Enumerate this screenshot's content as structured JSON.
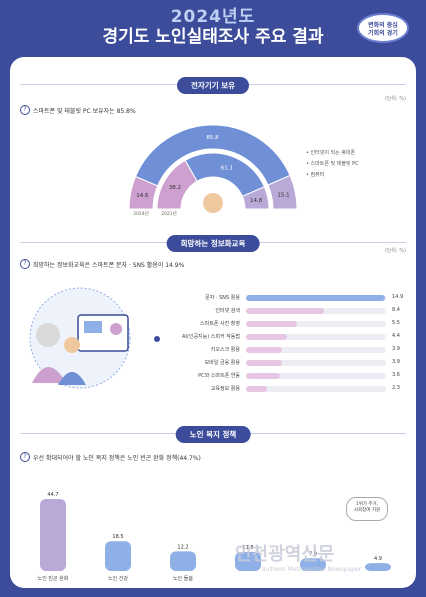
{
  "header": {
    "year": "2024년도",
    "title": "경기도 노인실태조사 주요 결과",
    "badge": "변화의 중심\n기회의 경기"
  },
  "sec1": {
    "pill": "전자기기 보유",
    "unit": "(단위: %)",
    "question": "스마트폰 및 태블릿 PC 보유자는 85.8%"
  },
  "sec2": {
    "pill": "희망하는 정보화교육",
    "unit": "(단위: %)",
    "question": "희망하는 정보화교육은 스마트폰 문자 · SNS 활용이 14.9%"
  },
  "sec3": {
    "pill": "노인 복지 정책",
    "question": "우선 확대되어야 할 노인 복지 정책은 노인 빈곤 완화 정책(44.7%)",
    "note": "1위가 주거,\n사회참여 지원"
  },
  "colors": {
    "navy": "#3c4c9a",
    "blue": "#6f90d6",
    "lblue": "#8fb0e6",
    "pink": "#cda0cf",
    "lpink": "#e7c6e3",
    "purple": "#b9a9d7"
  },
  "watermark": {
    "ko": "인천광역신문",
    "en": "Incheon Metropolitan Newspaper"
  },
  "chart_data": [
    {
      "type": "bar",
      "title": "전자기기 보유",
      "categories": [
        "인터넷이 되는 휴대폰",
        "스마트폰 및 태블릿 PC",
        "컴퓨터"
      ],
      "series": [
        {
          "name": "2024년",
          "values": [
            14.6,
            85.8,
            15.1
          ]
        },
        {
          "name": "2021년",
          "values": [
            38.2,
            61.1,
            14.8
          ]
        }
      ]
    },
    {
      "type": "bar",
      "title": "희망하는 정보화교육",
      "categories": [
        "문자 · SNS 활용",
        "인터넷 검색",
        "스마트폰 사진 촬영",
        "AI(인공지능) 스피커 작동법",
        "키오스크 활용",
        "모바일 금융 활용",
        "PC와 스마트폰 연동",
        "교육정보 활용"
      ],
      "values": [
        14.9,
        8.4,
        5.5,
        4.4,
        3.9,
        3.9,
        3.6,
        2.3
      ],
      "xlim": [
        0,
        15
      ]
    },
    {
      "type": "bar",
      "title": "노인 복지 정책",
      "categories": [
        "노인 빈곤 완화",
        "노인 건강",
        "노인 돌봄",
        "",
        "",
        ""
      ],
      "values": [
        44.7,
        18.5,
        12.2,
        11.8,
        7.9,
        4.9
      ]
    }
  ]
}
